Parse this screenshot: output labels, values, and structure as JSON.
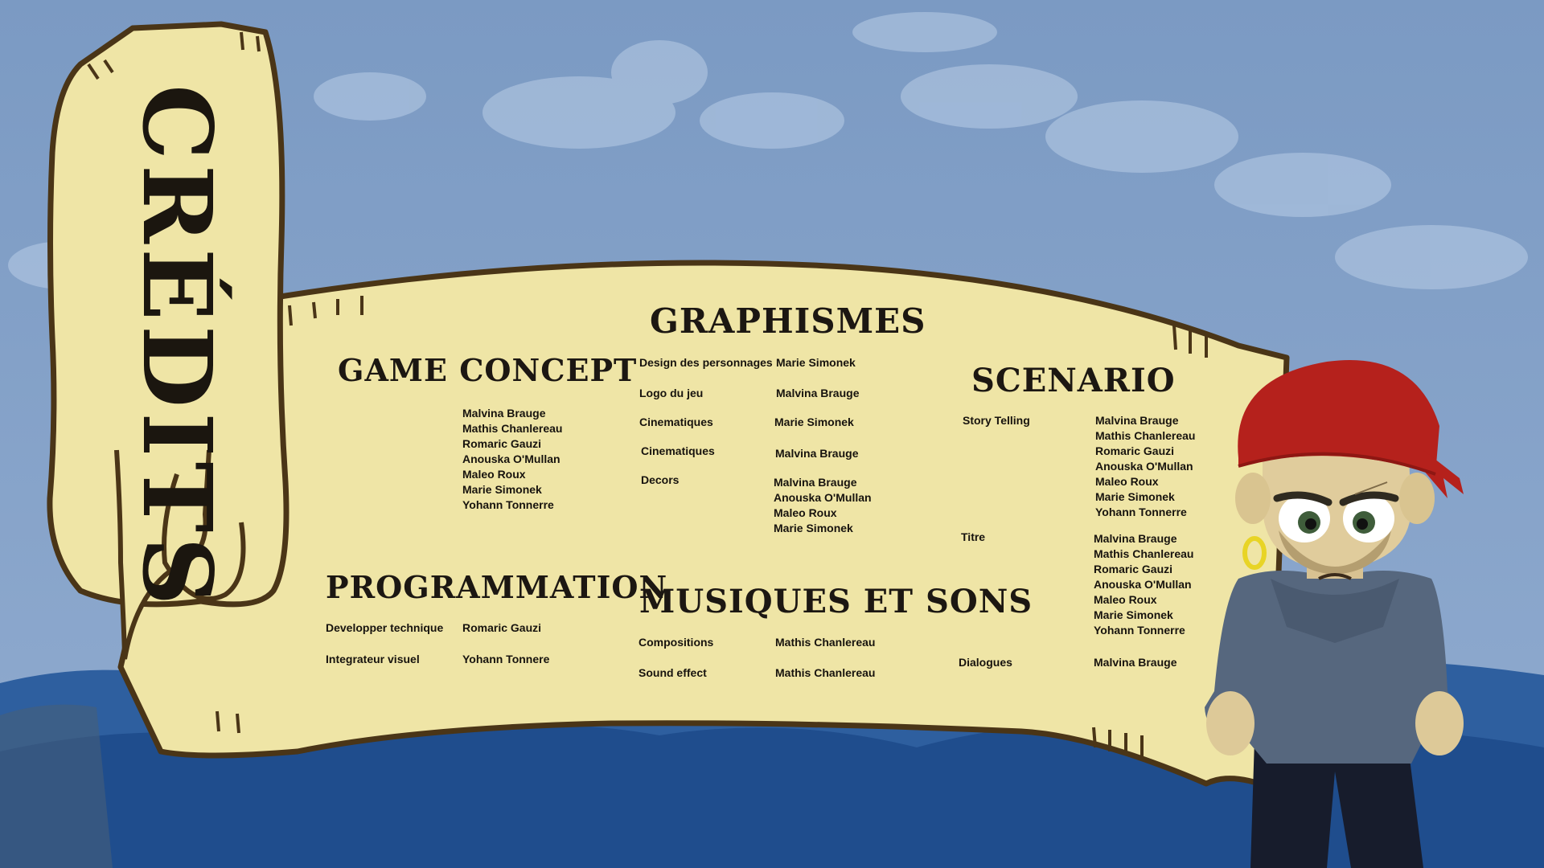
{
  "title": "CRÉDITS",
  "sections": {
    "game_concept": {
      "heading": "GAME CONCEPT",
      "names": [
        "Malvina Brauge",
        "Mathis Chanlereau",
        "Romaric Gauzi",
        "Anouska O'Mullan",
        "Maleo Roux",
        "Marie Simonek",
        "Yohann Tonnerre"
      ]
    },
    "programmation": {
      "heading": "PROGRAMMATION",
      "rows": [
        {
          "role": "Developper technique",
          "name": "Romaric Gauzi"
        },
        {
          "role": "Integrateur visuel",
          "name": "Yohann Tonnere"
        }
      ]
    },
    "graphismes": {
      "heading": "GRAPHISMES",
      "rows": [
        {
          "role": "Design des personnages",
          "name": "Marie Simonek"
        },
        {
          "role": "Logo du jeu",
          "name": "Malvina Brauge"
        },
        {
          "role": "Cinematiques",
          "name": "Marie Simonek"
        },
        {
          "role": "Cinematiques",
          "name": "Malvina Brauge"
        }
      ],
      "decors_role": "Decors",
      "decors_names": [
        "Malvina Brauge",
        "Anouska O'Mullan",
        "Maleo Roux",
        "Marie Simonek"
      ]
    },
    "musiques": {
      "heading": "MUSIQUES ET SONS",
      "rows": [
        {
          "role": "Compositions",
          "name": "Mathis Chanlereau"
        },
        {
          "role": "Sound effect",
          "name": "Mathis Chanlereau"
        }
      ]
    },
    "scenario": {
      "heading": "SCENARIO",
      "story_role": "Story Telling",
      "story_names": [
        "Malvina Brauge",
        "Mathis Chanlereau",
        "Romaric Gauzi",
        "Anouska O'Mullan",
        "Maleo Roux",
        "Marie Simonek",
        "Yohann Tonnerre"
      ],
      "titre_role": "Titre",
      "titre_names": [
        "Malvina Brauge",
        "Mathis Chanlereau",
        "Romaric Gauzi",
        "Anouska O'Mullan",
        "Maleo Roux",
        "Marie Simonek",
        "Yohann Tonnerre"
      ],
      "dialogues_role": "Dialogues",
      "dialogues_name": "Malvina Brauge"
    }
  },
  "colors": {
    "sky": "#7d9dc6",
    "parchment": "#efe5a6",
    "outline": "#4a3517",
    "sea_light": "#3366a8",
    "sea_dark": "#1d4a8a",
    "bandana": "#b5211c"
  },
  "icons": [
    "pirate-character",
    "cloud-shapes",
    "wave-shapes",
    "scroll-banner"
  ]
}
